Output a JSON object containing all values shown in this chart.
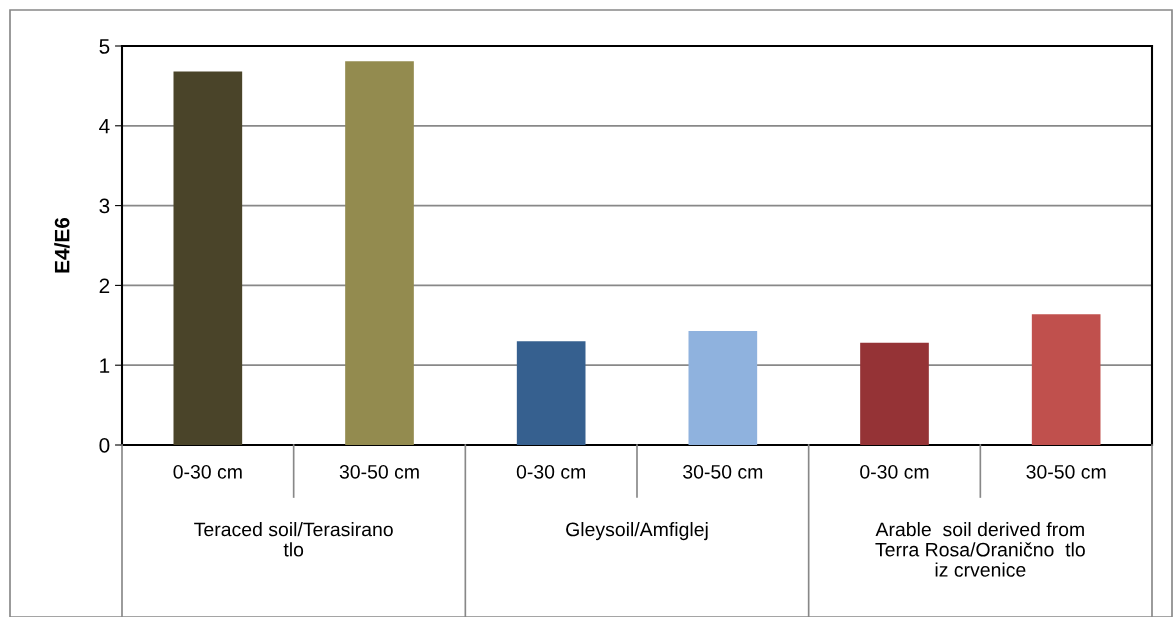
{
  "chart_data": {
    "type": "bar",
    "ylabel": "E4/E6",
    "categories": [
      "0-30 cm",
      "30-50 cm",
      "0-30 cm",
      "30-50 cm",
      "0-30 cm",
      "30-50 cm"
    ],
    "values": [
      4.68,
      4.81,
      1.3,
      1.43,
      1.28,
      1.64
    ],
    "colors": [
      "#4a4429",
      "#938b4f",
      "#36608f",
      "#8fb2de",
      "#953336",
      "#c0504d"
    ],
    "annotations": [
      "Teraced soil/Terasirano\ntlo",
      "Gleysoil/Amfiglej",
      "Arable  soil derived from\nTerra Rosa/Oranično  tlo\niz crvenice"
    ],
    "ylim": [
      0,
      5
    ],
    "yticks": [
      0,
      1,
      2,
      3,
      4,
      5
    ],
    "grid": "y",
    "legend": false
  }
}
